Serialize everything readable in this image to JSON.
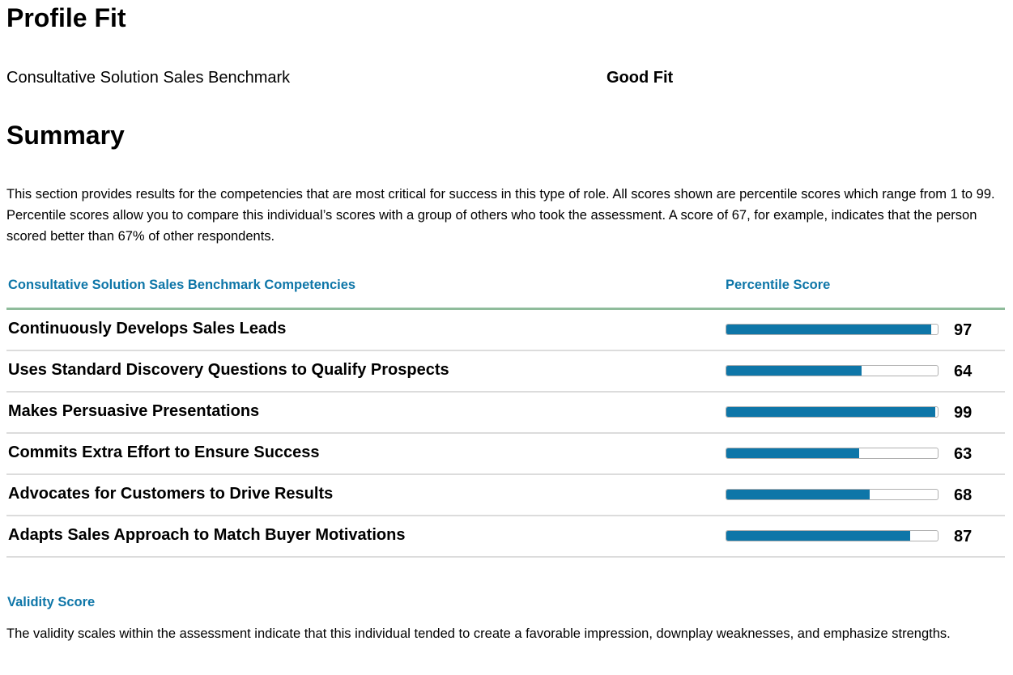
{
  "profile": {
    "title": "Profile Fit",
    "benchmark": "Consultative Solution Sales Benchmark",
    "fit": "Good Fit"
  },
  "summary": {
    "title": "Summary",
    "text": "This section provides results for the competencies that are most critical for success in this type of role. All scores shown are percentile scores which range from 1 to 99. Percentile scores allow you to compare this individual’s scores with a group of others who took the assessment. A score of 67, for example, indicates that the person scored better than 67% of other respondents."
  },
  "table": {
    "col_competency": "Consultative Solution Sales Benchmark Competencies",
    "col_score": "Percentile Score",
    "rows": [
      {
        "name": "Continuously Develops Sales Leads",
        "score": "97"
      },
      {
        "name": "Uses Standard Discovery Questions to Qualify Prospects",
        "score": "64"
      },
      {
        "name": "Makes Persuasive Presentations",
        "score": "99"
      },
      {
        "name": "Commits Extra Effort to Ensure Success",
        "score": "63"
      },
      {
        "name": "Advocates for Customers to Drive Results",
        "score": "68"
      },
      {
        "name": "Adapts Sales Approach to Match Buyer Motivations",
        "score": "87"
      }
    ]
  },
  "validity": {
    "title": "Validity Score",
    "text": "The validity scales within the assessment indicate that this individual tended to create a favorable impression, downplay weaknesses, and emphasize strengths."
  },
  "colors": {
    "accent": "#0e76a8",
    "rule": "#8fbc9b"
  }
}
